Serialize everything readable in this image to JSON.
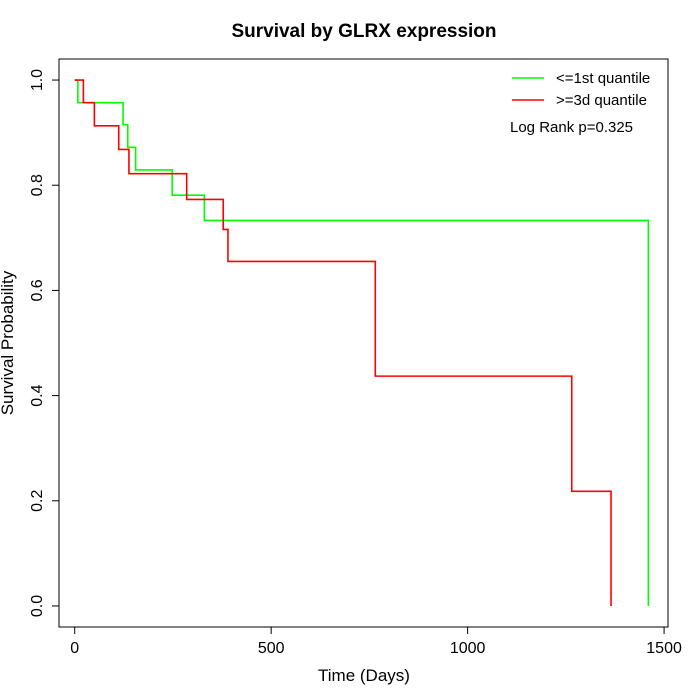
{
  "chart_data": {
    "type": "line",
    "title": "Survival by GLRX expression",
    "xlabel": "Time (Days)",
    "ylabel": "Survival Probability",
    "xlim": [
      -40,
      1510
    ],
    "ylim": [
      -0.04,
      1.04
    ],
    "x_ticks": [
      0,
      500,
      1000,
      1500
    ],
    "x_tick_labels": [
      "0",
      "500",
      "1000",
      "1500"
    ],
    "y_ticks": [
      0.0,
      0.2,
      0.4,
      0.6,
      0.8,
      1.0
    ],
    "y_tick_labels": [
      "0.0",
      "0.2",
      "0.4",
      "0.6",
      "0.8",
      "1.0"
    ],
    "grid": false,
    "legend_position": "top-right",
    "annotation": "Log Rank p=0.325",
    "series": [
      {
        "name": "<=1st quantile",
        "color": "#00ff00",
        "x": [
          0,
          8,
          105,
          123,
          135,
          155,
          248,
          330,
          1460,
          1460
        ],
        "y": [
          1.0,
          0.957,
          0.957,
          0.915,
          0.872,
          0.829,
          0.781,
          0.733,
          0.733,
          0.0
        ]
      },
      {
        "name": ">=3d quantile",
        "color": "#ff0000",
        "x": [
          0,
          22,
          50,
          112,
          138,
          285,
          378,
          390,
          765,
          1265,
          1365,
          1365
        ],
        "y": [
          1.0,
          0.957,
          0.913,
          0.868,
          0.822,
          0.773,
          0.716,
          0.655,
          0.437,
          0.218,
          0.218,
          0.0
        ]
      }
    ]
  }
}
